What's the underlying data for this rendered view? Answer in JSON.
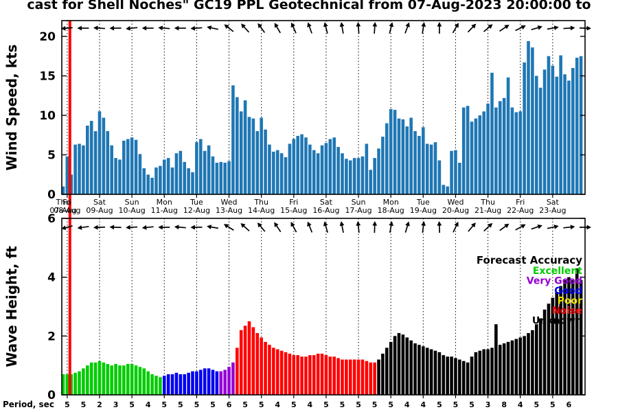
{
  "title": "cast for Shell Noches\" GC19 PPL Geotechnical from 07-Aug-2023 20:00:00 to",
  "colors": {
    "wind": "#1F77B4",
    "now_line": "#FF0000",
    "axis": "#000000",
    "accuracy": {
      "Excellent": "#00CC00",
      "Very Good": "#9400D3",
      "Good": "#0000EE",
      "Poor": "#F0E000",
      "Noise": "#FF0000",
      "Unknown": "#000000"
    }
  },
  "panels": {
    "wind": {
      "ylabel": "Wind Speed, kts",
      "yticks": [
        0,
        5,
        10,
        15,
        20
      ],
      "ylim": [
        0,
        22
      ]
    },
    "wave": {
      "ylabel": "Wave Height, ft",
      "yticks": [
        0,
        2,
        4,
        6
      ],
      "ylim": [
        0,
        6
      ]
    }
  },
  "x_axis": {
    "days": [
      {
        "weekday": "Thu",
        "date": "07-Aug"
      },
      {
        "weekday": "Fri",
        "date": "08-Aug"
      },
      {
        "weekday": "Sat",
        "date": "09-Aug"
      },
      {
        "weekday": "Sun",
        "date": "10-Aug"
      },
      {
        "weekday": "Mon",
        "date": "11-Aug"
      },
      {
        "weekday": "Tue",
        "date": "12-Aug"
      },
      {
        "weekday": "Wed",
        "date": "13-Aug"
      },
      {
        "weekday": "Thu",
        "date": "14-Aug"
      },
      {
        "weekday": "Fri",
        "date": "15-Aug"
      },
      {
        "weekday": "Sat",
        "date": "16-Aug"
      },
      {
        "weekday": "Sun",
        "date": "17-Aug"
      },
      {
        "weekday": "Mon",
        "date": "18-Aug"
      },
      {
        "weekday": "Tue",
        "date": "19-Aug"
      },
      {
        "weekday": "Wed",
        "date": "20-Aug"
      },
      {
        "weekday": "Thu",
        "date": "21-Aug"
      },
      {
        "weekday": "Fri",
        "date": "22-Aug"
      },
      {
        "weekday": "Sat",
        "date": "23-Aug"
      }
    ]
  },
  "legend": {
    "title": "Forecast Accuracy",
    "entries": [
      {
        "label": "Excellent"
      },
      {
        "label": "Very Good"
      },
      {
        "label": "Good"
      },
      {
        "label": "Poor"
      },
      {
        "label": "Noise"
      },
      {
        "label": "Unknown"
      }
    ]
  },
  "period_axis": {
    "label": "Period, sec",
    "values": [
      5,
      5,
      2,
      3,
      5,
      4,
      5,
      5,
      5,
      5,
      6,
      5,
      5,
      4,
      5,
      4,
      5,
      5,
      5,
      5,
      5,
      4,
      4,
      5,
      5,
      5,
      3,
      8,
      4,
      5,
      5,
      6
    ]
  },
  "chart_data": {
    "type": "bar",
    "time_start": "07-Aug-2023 21:00",
    "time_step_hours": 3,
    "now_hour": 6,
    "wind_kts": [
      1.0,
      4.8,
      2.5,
      6.3,
      6.4,
      6.2,
      8.7,
      9.3,
      8.0,
      10.5,
      9.7,
      8.0,
      6.2,
      4.6,
      4.4,
      6.8,
      7.0,
      7.2,
      6.9,
      5.1,
      3.3,
      2.5,
      2.1,
      3.4,
      3.6,
      4.4,
      4.6,
      3.4,
      5.2,
      5.5,
      4.1,
      3.3,
      2.8,
      6.6,
      7.0,
      5.5,
      6.2,
      4.8,
      4.0,
      4.1,
      4.0,
      4.2,
      13.8,
      12.3,
      10.5,
      11.9,
      9.8,
      9.6,
      8.0,
      9.7,
      8.2,
      6.3,
      5.4,
      5.6,
      5.2,
      4.7,
      6.4,
      7.0,
      7.4,
      7.6,
      7.2,
      6.3,
      5.6,
      5.2,
      6.2,
      6.5,
      7.0,
      7.2,
      6.0,
      5.2,
      4.5,
      4.3,
      4.6,
      4.6,
      4.8,
      6.4,
      3.1,
      4.6,
      5.8,
      7.3,
      9.0,
      10.8,
      10.7,
      9.6,
      9.5,
      8.6,
      9.7,
      8.0,
      7.4,
      8.5,
      6.4,
      6.3,
      6.6,
      4.3,
      1.2,
      1.0,
      5.5,
      5.6,
      4.0,
      11.0,
      11.2,
      9.2,
      9.6,
      10.0,
      10.5,
      11.5,
      15.4,
      11.0,
      11.8,
      12.2,
      14.8,
      11.0,
      10.4,
      10.5,
      16.7,
      19.4,
      18.6,
      15.0,
      13.5,
      15.8,
      17.5,
      16.3,
      14.9,
      17.6,
      15.2,
      14.4,
      16.0,
      17.3,
      17.5
    ],
    "wave_ft": [
      0.7,
      0.7,
      0.7,
      0.75,
      0.8,
      0.9,
      1.0,
      1.1,
      1.1,
      1.15,
      1.1,
      1.05,
      1.0,
      1.05,
      1.0,
      1.0,
      1.05,
      1.05,
      1.0,
      0.95,
      0.9,
      0.8,
      0.7,
      0.65,
      0.6,
      0.65,
      0.7,
      0.7,
      0.75,
      0.7,
      0.7,
      0.75,
      0.8,
      0.8,
      0.85,
      0.9,
      0.9,
      0.85,
      0.8,
      0.8,
      0.85,
      0.95,
      1.1,
      1.6,
      2.2,
      2.35,
      2.5,
      2.3,
      2.1,
      1.95,
      1.8,
      1.7,
      1.6,
      1.55,
      1.5,
      1.45,
      1.4,
      1.35,
      1.35,
      1.3,
      1.3,
      1.35,
      1.35,
      1.4,
      1.4,
      1.35,
      1.3,
      1.3,
      1.25,
      1.2,
      1.2,
      1.2,
      1.2,
      1.2,
      1.2,
      1.15,
      1.1,
      1.1,
      1.2,
      1.4,
      1.6,
      1.8,
      2.0,
      2.1,
      2.05,
      1.95,
      1.85,
      1.75,
      1.7,
      1.65,
      1.6,
      1.55,
      1.5,
      1.45,
      1.35,
      1.3,
      1.3,
      1.25,
      1.2,
      1.15,
      1.1,
      1.3,
      1.45,
      1.5,
      1.55,
      1.55,
      1.6,
      2.4,
      1.7,
      1.75,
      1.8,
      1.85,
      1.9,
      1.95,
      2.0,
      2.1,
      2.2,
      2.4,
      2.6,
      2.9,
      3.1,
      3.3,
      3.5,
      3.7,
      3.9,
      4.0,
      3.9,
      4.3,
      3.9
    ],
    "accuracy_segments": [
      {
        "from": 0,
        "to": 24,
        "level": "Excellent"
      },
      {
        "from": 25,
        "to": 38,
        "level": "Good"
      },
      {
        "from": 39,
        "to": 42,
        "level": "Very Good"
      },
      {
        "from": 43,
        "to": 77,
        "level": "Noise"
      },
      {
        "from": 78,
        "to": 128,
        "level": "Unknown"
      }
    ],
    "wind_arrow_deg": [
      185,
      180,
      176,
      181,
      186,
      180,
      175,
      180,
      184,
      168,
      142,
      132,
      126,
      120,
      114,
      110,
      104,
      100,
      94,
      86,
      76,
      70,
      81,
      90,
      60,
      46,
      40,
      34,
      26,
      16,
      10,
      4,
      358
    ],
    "wave_arrow_deg": [
      195,
      188,
      182,
      178,
      183,
      186,
      180,
      175,
      181,
      170,
      148,
      138,
      130,
      124,
      118,
      112,
      106,
      101,
      96,
      88,
      80,
      73,
      83,
      92,
      64,
      50,
      43,
      36,
      29,
      19,
      12,
      6,
      0
    ]
  }
}
